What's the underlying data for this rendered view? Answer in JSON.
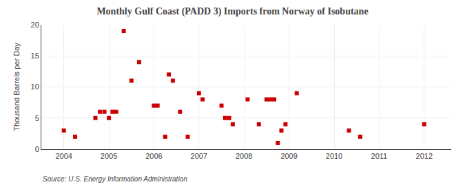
{
  "chart_data": {
    "type": "scatter",
    "title": "Monthly Gulf Coast (PADD 3) Imports from Norway of Isobutane",
    "ylabel": "Thousand Barrels per Day",
    "annotations": [
      "Source: U.S. Energy Information Administration"
    ],
    "x": [
      2004.0,
      2004.25,
      2004.7,
      2004.8,
      2004.9,
      2005.0,
      2005.08,
      2005.16,
      2005.33,
      2005.5,
      2005.67,
      2006.0,
      2006.08,
      2006.25,
      2006.33,
      2006.42,
      2006.58,
      2006.75,
      2007.0,
      2007.08,
      2007.5,
      2007.58,
      2007.67,
      2007.75,
      2008.08,
      2008.33,
      2008.5,
      2008.58,
      2008.67,
      2008.75,
      2008.83,
      2008.92,
      2009.17,
      2010.33,
      2010.58,
      2012.0
    ],
    "values": [
      3.0,
      2.0,
      5.0,
      6.0,
      6.0,
      5.0,
      6.0,
      6.0,
      19.0,
      11.0,
      14.0,
      7.0,
      7.0,
      2.0,
      12.0,
      11.0,
      6.0,
      2.0,
      9.0,
      8.0,
      7.0,
      5.0,
      5.0,
      4.0,
      8.0,
      4.0,
      8.0,
      8.0,
      8.0,
      1.0,
      3.0,
      4.0,
      9.0,
      3.0,
      2.0,
      4.0
    ],
    "color": "#cc0000",
    "marker": "square",
    "xlim": [
      2003.5,
      2012.6
    ],
    "xticks": [
      2004,
      2005,
      2006,
      2007,
      2008,
      2009,
      2010,
      2011,
      2012
    ],
    "ylim": [
      0,
      20
    ],
    "yticks": [
      0,
      5,
      10,
      15,
      20
    ],
    "grid": true
  }
}
